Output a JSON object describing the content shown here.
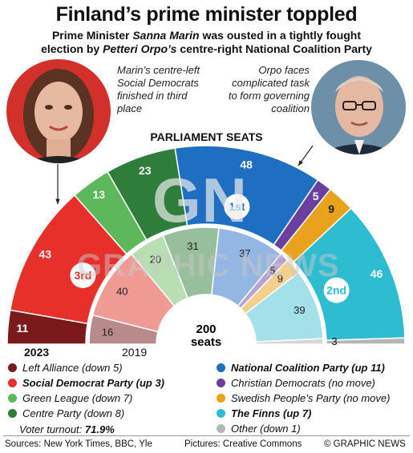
{
  "headline": "Finland’s prime minister toppled",
  "subtitle": {
    "line1_a": "Prime Minister ",
    "line1_name": "Sanna Marin",
    "line1_b": " was ousted in a tightly fought",
    "line2_a": "election by ",
    "line2_name": "Petteri Orpo’s",
    "line2_b": " centre-right National Coalition Party"
  },
  "notes": {
    "left": "Marin’s centre-left Social Democrats finished in third place",
    "right": "Orpo faces complicated task to form governing coalition"
  },
  "watermark": {
    "logo": "GN",
    "text": "GRAPHIC NEWS"
  },
  "chart_data": {
    "type": "pie",
    "subtype": "parliament-hemicycle",
    "title": "PARLIAMENT SEATS",
    "total_label": "200",
    "total_unit": "seats",
    "rings": [
      {
        "year": "2023",
        "ring": "outer",
        "parties": [
          {
            "party": "Left Alliance",
            "seats": 11,
            "color": "#7a1a1a"
          },
          {
            "party": "Social Democrat Party",
            "seats": 43,
            "color": "#e8302b",
            "rank": "3rd"
          },
          {
            "party": "Green League",
            "seats": 13,
            "color": "#5cb85a"
          },
          {
            "party": "Centre Party",
            "seats": 23,
            "color": "#2e7d3a"
          },
          {
            "party": "National Coalition Party",
            "seats": 48,
            "color": "#1e6fc1",
            "rank": "1st"
          },
          {
            "party": "Christian Democrats",
            "seats": 5,
            "color": "#6b3fa0"
          },
          {
            "party": "Swedish People’s Party",
            "seats": 9,
            "color": "#e8a21c"
          },
          {
            "party": "The Finns",
            "seats": 46,
            "color": "#2ebcd0",
            "rank": "2nd"
          },
          {
            "party": "Other",
            "seats": 2,
            "color": "#b5b5b5"
          }
        ]
      },
      {
        "year": "2019",
        "ring": "inner",
        "parties": [
          {
            "party": "Left Alliance",
            "seats": 16,
            "color": "#b88a8a"
          },
          {
            "party": "Social Democrat Party",
            "seats": 40,
            "color": "#f09a94"
          },
          {
            "party": "Green League",
            "seats": 20,
            "color": "#b8dfb2"
          },
          {
            "party": "Centre Party",
            "seats": 31,
            "color": "#97bf9c"
          },
          {
            "party": "National Coalition Party",
            "seats": 37,
            "color": "#93b6e2"
          },
          {
            "party": "Christian Democrats",
            "seats": 5,
            "color": "#b7a2d3"
          },
          {
            "party": "Swedish People’s Party",
            "seats": 9,
            "color": "#f3cf8c"
          },
          {
            "party": "The Finns",
            "seats": 39,
            "color": "#a2e0ea"
          },
          {
            "party": "Other",
            "seats": 3,
            "color": "#d6d6d6"
          }
        ]
      }
    ],
    "legend": [
      {
        "label": "Left Alliance (down 5)",
        "color": "#7a1a1a",
        "bold": false
      },
      {
        "label": "Social Democrat Party (up 3)",
        "color": "#e8302b",
        "bold": true
      },
      {
        "label": "Green League (down 7)",
        "color": "#5cb85a",
        "bold": false
      },
      {
        "label": "Centre Party (down 8)",
        "color": "#2e7d3a",
        "bold": false
      },
      {
        "label": "National Coalition Party (up 11)",
        "color": "#1e6fc1",
        "bold": true
      },
      {
        "label": "Christian Democrats (no move)",
        "color": "#6b3fa0",
        "bold": false
      },
      {
        "label": "Swedish People’s Party (no move)",
        "color": "#e8a21c",
        "bold": false
      },
      {
        "label": "The Finns (up 7)",
        "color": "#2ebcd0",
        "bold": true
      },
      {
        "label": "Other (down 1)",
        "color": "#b5b5b5",
        "bold": false
      }
    ]
  },
  "turnout": {
    "label": "Voter turnout:",
    "value": "71.9%"
  },
  "footer": {
    "sources": "Sources: New York Times, BBC, Yle",
    "pictures": "Pictures: Creative Commons",
    "copyright": "© GRAPHIC NEWS"
  }
}
